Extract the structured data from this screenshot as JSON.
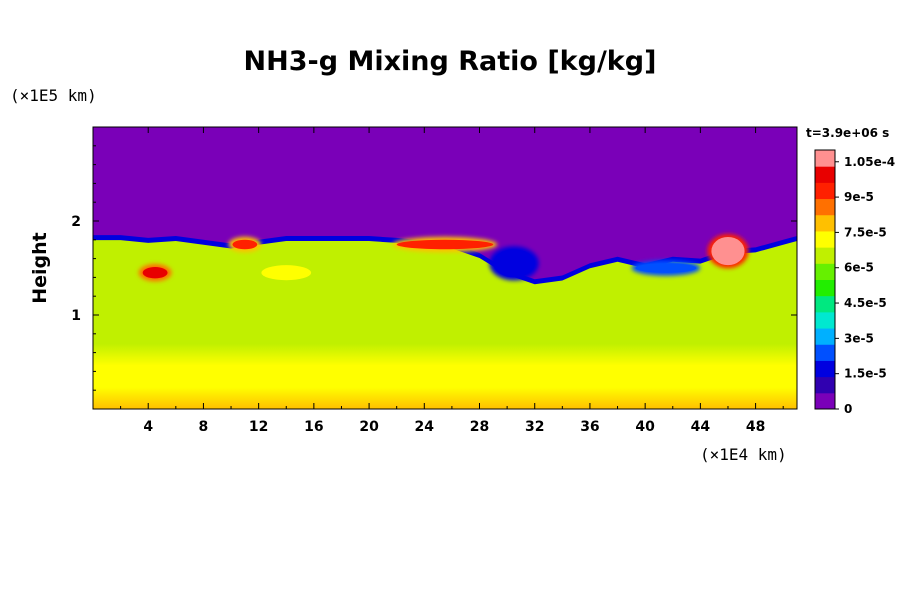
{
  "chart_data": {
    "type": "heatmap",
    "title": "NH3-g Mixing Ratio [kg/kg]",
    "ylabel": "Height",
    "y_unit": "(×1E5 km)",
    "x_unit": "(×1E4 km)",
    "time_label": "t=3.9e+06 s",
    "xlim": [
      0,
      51
    ],
    "ylim": [
      0,
      3
    ],
    "x_ticks": [
      4,
      8,
      12,
      16,
      20,
      24,
      28,
      32,
      36,
      40,
      44,
      48
    ],
    "x_tick_labels": [
      "4",
      "8",
      "12",
      "16",
      "20",
      "24",
      "28",
      "32",
      "36",
      "40",
      "44",
      "48"
    ],
    "y_ticks": [
      1,
      2
    ],
    "y_tick_labels": [
      "1",
      "2"
    ],
    "colorbar": {
      "range": [
        0,
        0.00011
      ],
      "ticks": [
        0,
        1.5e-05,
        3e-05,
        4.5e-05,
        6e-05,
        7.5e-05,
        9e-05,
        0.000105
      ],
      "tick_labels": [
        "0",
        "1.5e-5",
        "3e-5",
        "4.5e-5",
        "6e-5",
        "7.5e-5",
        "9e-5",
        "1.05e-4"
      ],
      "colors": [
        "#7a00b8",
        "#3000b0",
        "#0000e0",
        "#0050ff",
        "#00b0ff",
        "#00e8d0",
        "#00e880",
        "#22ee00",
        "#66f000",
        "#c0f000",
        "#ffff00",
        "#ffc000",
        "#ff7000",
        "#ff2000",
        "#e80000",
        "#ff9090"
      ]
    },
    "field": {
      "description_free": true,
      "top_boundary_height": [
        1.85,
        1.85,
        1.82,
        1.84,
        1.8,
        1.76,
        1.8,
        1.84,
        1.84,
        1.84,
        1.84,
        1.82,
        1.76,
        1.66,
        1.48,
        1.38,
        1.42,
        1.55,
        1.62,
        1.55,
        1.62,
        1.6,
        1.7,
        1.72,
        1.8,
        1.84
      ],
      "top_boundary_x": [
        0,
        2,
        4,
        6,
        8,
        10,
        12,
        14,
        16,
        18,
        20,
        22,
        26,
        28,
        30,
        32,
        34,
        36,
        38,
        40,
        42,
        44,
        46,
        48,
        50,
        51
      ],
      "surface_value": 7.6e-05,
      "interior_value": 6.3e-05,
      "upper_value": 0,
      "features": [
        {
          "x": 4.5,
          "y": 1.45,
          "value": 9.8e-05,
          "rx": 0.9,
          "ry": 0.06
        },
        {
          "x": 11,
          "y": 1.75,
          "value": 9.5e-05,
          "rx": 0.9,
          "ry": 0.05
        },
        {
          "x": 14,
          "y": 1.45,
          "value": 7.4e-05,
          "rx": 1.8,
          "ry": 0.08
        },
        {
          "x": 25.5,
          "y": 1.75,
          "value": 9.6e-05,
          "rx": 3.5,
          "ry": 0.05
        },
        {
          "x": 46,
          "y": 1.68,
          "value": 0.00011,
          "rx": 1.2,
          "ry": 0.15
        },
        {
          "x": 30.5,
          "y": 1.55,
          "value": 2e-05,
          "rx": 1.5,
          "ry": 0.15
        },
        {
          "x": 41.5,
          "y": 1.5,
          "value": 2.5e-05,
          "rx": 2.2,
          "ry": 0.05
        }
      ]
    }
  }
}
